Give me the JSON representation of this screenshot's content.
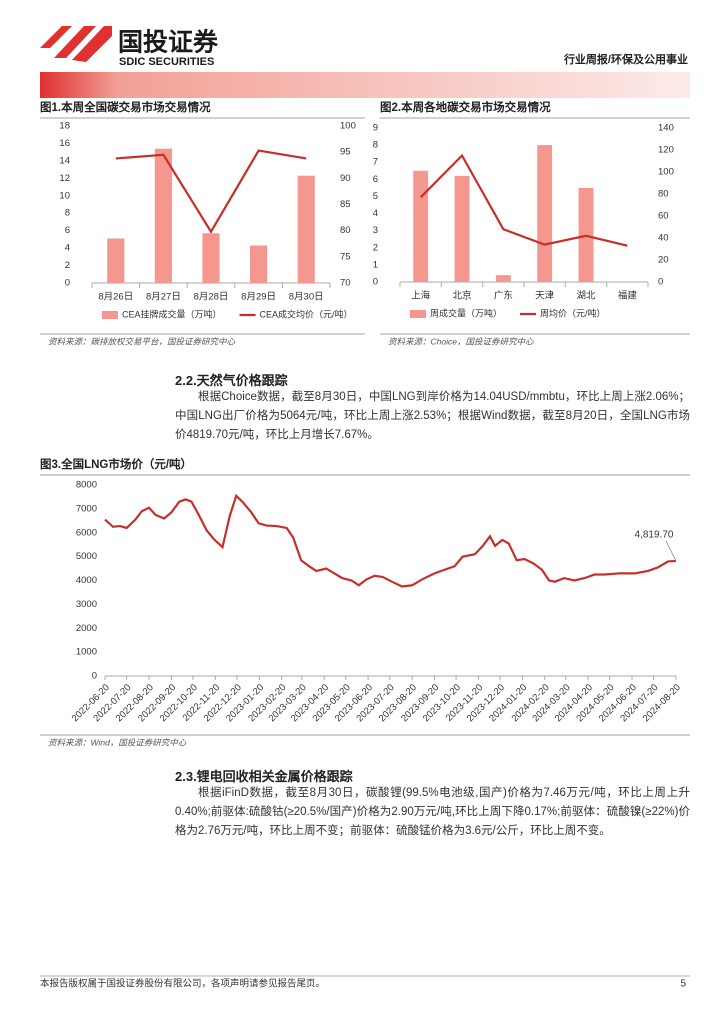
{
  "header": {
    "logo_cn": "国投证券",
    "logo_en": "SDIC SECURITIES",
    "category": "行业周报/环保及公用事业"
  },
  "chart_data": [
    {
      "type": "bar_line",
      "title": "图1.本周全国碳交易市场交易情况",
      "source": "资料来源：碳排放权交易平台，国投证券研究中心",
      "categories": [
        "8月26日",
        "8月27日",
        "8月28日",
        "8月29日",
        "8月30日"
      ],
      "series": [
        {
          "name": "CEA挂牌成交量（万吨）",
          "type": "bar",
          "color": "#f4978e",
          "values": [
            5.1,
            15.4,
            5.7,
            4.3,
            12.3
          ]
        },
        {
          "name": "CEA成交均价（元/吨）",
          "type": "line",
          "axis": "y2",
          "color": "#c62f2b",
          "values": [
            93.8,
            94.5,
            79.8,
            95.3,
            93.8
          ]
        }
      ],
      "ylim": [
        0,
        18
      ],
      "yticks": [
        0,
        2,
        4,
        6,
        8,
        10,
        12,
        14,
        16,
        18
      ],
      "y2lim": [
        70,
        100
      ],
      "y2ticks": [
        70,
        75,
        80,
        85,
        90,
        95,
        100
      ],
      "grid": false,
      "legend": "bottom"
    },
    {
      "type": "bar_line",
      "title": "图2.本周各地碳交易市场交易情况",
      "source": "资料来源：Choice，国投证券研究中心",
      "categories": [
        "上海",
        "北京",
        "广东",
        "天津",
        "湖北",
        "福建"
      ],
      "series": [
        {
          "name": "周成交量（万吨）",
          "type": "bar",
          "color": "#f4978e",
          "values": [
            6.5,
            6.2,
            0.4,
            8.0,
            5.5,
            0
          ]
        },
        {
          "name": "周均价（元/吨）",
          "type": "line",
          "axis": "y2",
          "color": "#c62f2b",
          "values": [
            77,
            115,
            48,
            34,
            42,
            33
          ]
        }
      ],
      "ylim": [
        0,
        9
      ],
      "yticks": [
        0,
        1,
        2,
        3,
        4,
        5,
        6,
        7,
        8,
        9
      ],
      "y2lim": [
        0,
        140
      ],
      "y2ticks": [
        0,
        20,
        40,
        60,
        80,
        100,
        120,
        140
      ],
      "grid": false,
      "legend": "bottom"
    },
    {
      "type": "line",
      "title": "图3.全国LNG市场价（元/吨）",
      "source": "资料来源：Wind，国投证券研究中心",
      "x": [
        "2022-06-20",
        "2022-07-01",
        "2022-07-11",
        "2022-07-20",
        "2022-08-01",
        "2022-08-10",
        "2022-08-20",
        "2022-08-29",
        "2022-09-10",
        "2022-09-20",
        "2022-10-01",
        "2022-10-10",
        "2022-10-18",
        "2022-10-28",
        "2022-11-08",
        "2022-11-19",
        "2022-11-30",
        "2022-12-10",
        "2022-12-19",
        "2022-12-29",
        "2023-01-09",
        "2023-01-19",
        "2023-01-30",
        "2023-02-13",
        "2023-02-27",
        "2023-03-08",
        "2023-03-19",
        "2023-03-30",
        "2023-04-09",
        "2023-04-23",
        "2023-05-04",
        "2023-05-15",
        "2023-05-28",
        "2023-06-07",
        "2023-06-18",
        "2023-06-29",
        "2023-07-10",
        "2023-07-23",
        "2023-08-06",
        "2023-08-20",
        "2023-09-03",
        "2023-09-20",
        "2023-10-04",
        "2023-10-18",
        "2023-10-29",
        "2023-11-15",
        "2023-11-26",
        "2023-12-06",
        "2023-12-13",
        "2023-12-23",
        "2024-01-01",
        "2024-01-12",
        "2024-01-23",
        "2024-02-05",
        "2024-02-16",
        "2024-02-26",
        "2024-03-05",
        "2024-03-18",
        "2024-04-01",
        "2024-04-15",
        "2024-04-29",
        "2024-05-13",
        "2024-06-03",
        "2024-06-24",
        "2024-07-12",
        "2024-07-26",
        "2024-08-09",
        "2024-08-20"
      ],
      "series": [
        {
          "color": "#c62f2b",
          "values": [
            6550,
            6250,
            6280,
            6200,
            6550,
            6900,
            7050,
            6750,
            6600,
            6850,
            7300,
            7400,
            7300,
            6750,
            6100,
            5700,
            5400,
            6700,
            7550,
            7250,
            6850,
            6400,
            6300,
            6280,
            6200,
            5800,
            4850,
            4600,
            4400,
            4500,
            4300,
            4100,
            4000,
            3800,
            4050,
            4200,
            4150,
            3950,
            3750,
            3800,
            4050,
            4300,
            4450,
            4600,
            5000,
            5100,
            5450,
            5850,
            5450,
            5700,
            5550,
            4850,
            4900,
            4700,
            4450,
            4000,
            3950,
            4100,
            4000,
            4100,
            4250,
            4250,
            4300,
            4300,
            4400,
            4550,
            4800,
            4819.7
          ]
        }
      ],
      "xlim": [
        "2022-06-20",
        "2024-08-20"
      ],
      "xticks": [
        "2022-06-20",
        "2022-07-20",
        "2022-08-20",
        "2022-09-20",
        "2022-10-20",
        "2022-11-20",
        "2022-12-20",
        "2023-01-20",
        "2023-02-20",
        "2023-03-20",
        "2023-04-20",
        "2023-05-20",
        "2023-06-20",
        "2023-07-20",
        "2023-08-20",
        "2023-09-20",
        "2023-10-20",
        "2023-11-20",
        "2023-12-20",
        "2024-01-20",
        "2024-02-20",
        "2024-03-20",
        "2024-04-20",
        "2024-05-20",
        "2024-06-20",
        "2024-07-20",
        "2024-08-20"
      ],
      "ylim": [
        0,
        8000
      ],
      "yticks": [
        0,
        1000,
        2000,
        3000,
        4000,
        5000,
        6000,
        7000,
        8000
      ],
      "grid": false,
      "annotation": {
        "x": "2024-08-20",
        "value": 4819.7,
        "label": "4,819.70"
      }
    }
  ],
  "sections": [
    {
      "heading": "2.2.天然气价格跟踪",
      "text": "根据Choice数据，截至8月30日，中国LNG到岸价格为14.04USD/mmbtu，环比上周上涨2.06%；中国LNG出厂价格为5064元/吨，环比上周上涨2.53%；根据Wind数据，截至8月20日，全国LNG市场价4819.70元/吨，环比上月增长7.67%。"
    },
    {
      "heading": "2.3.锂电回收相关金属价格跟踪",
      "text": "根据iFinD数据，截至8月30日，碳酸锂(99.5%电池级,国产)价格为7.46万元/吨，环比上周上升0.40%;前驱体:硫酸钴(≥20.5%/国产)价格为2.90万元/吨,环比上周下降0.17%;前驱体：硫酸镍(≥22%)价格为2.76万元/吨，环比上周不变；前驱体：硫酸锰价格为3.6元/公斤，环比上周不变。"
    }
  ],
  "footer": {
    "text": "本报告版权属于国投证券股份有限公司，各项声明请参见报告尾页。",
    "page": "5"
  }
}
